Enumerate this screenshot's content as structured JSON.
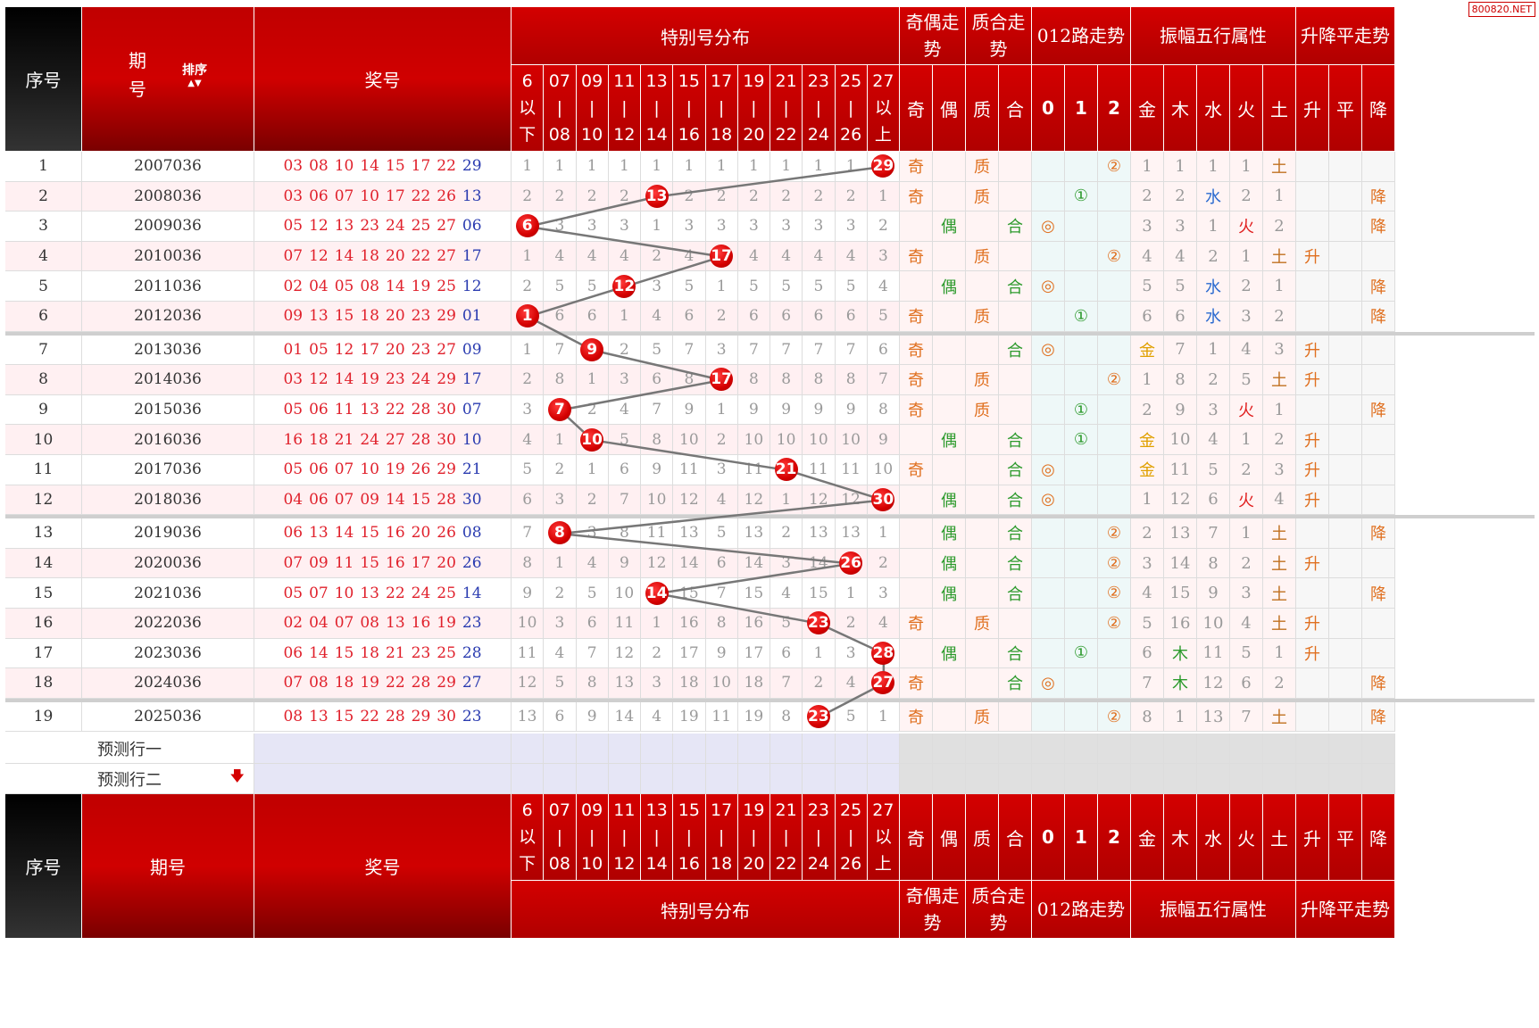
{
  "watermark": "800820.NET",
  "header": {
    "seq": "序号",
    "period": "期号",
    "period_top": "期",
    "period_bottom": "号",
    "sort_label": "排序",
    "draw": "奖号",
    "special_dist": "特别号分布",
    "odd_even": "奇偶走势",
    "prime_comp": "质合走势",
    "mod3": "012路走势",
    "wuxing": "振幅五行属性",
    "updown": "升降平走势"
  },
  "ranges": [
    [
      "6",
      "以",
      "下"
    ],
    [
      "07",
      "|",
      "08"
    ],
    [
      "09",
      "|",
      "10"
    ],
    [
      "11",
      "|",
      "12"
    ],
    [
      "13",
      "|",
      "14"
    ],
    [
      "15",
      "|",
      "16"
    ],
    [
      "17",
      "|",
      "18"
    ],
    [
      "19",
      "|",
      "20"
    ],
    [
      "21",
      "|",
      "22"
    ],
    [
      "23",
      "|",
      "24"
    ],
    [
      "25",
      "|",
      "26"
    ],
    [
      "27",
      "以",
      "上"
    ]
  ],
  "sub_cols": [
    "奇",
    "偶",
    "质",
    "合",
    "0",
    "1",
    "2",
    "金",
    "木",
    "水",
    "火",
    "土",
    "升",
    "平",
    "降"
  ],
  "rows": [
    {
      "seq": "1",
      "period": "2007036",
      "nums": [
        "03",
        "08",
        "10",
        "14",
        "15",
        "17",
        "22"
      ],
      "sp": "29",
      "miss": [
        "1",
        "1",
        "1",
        "1",
        "1",
        "1",
        "1",
        "1",
        "1",
        "1",
        "1",
        "29"
      ],
      "oe": "奇",
      "pc": "质",
      "m3": "②",
      "wx": [
        "1",
        "1",
        "1",
        "1",
        "土"
      ],
      "ud": ""
    },
    {
      "seq": "2",
      "period": "2008036",
      "nums": [
        "03",
        "06",
        "07",
        "10",
        "17",
        "22",
        "26"
      ],
      "sp": "13",
      "miss": [
        "2",
        "2",
        "2",
        "2",
        "13",
        "2",
        "2",
        "2",
        "2",
        "2",
        "2",
        "1"
      ],
      "oe": "奇",
      "pc": "质",
      "m3": "①",
      "wx": [
        "2",
        "2",
        "水",
        "2",
        "1"
      ],
      "ud": "降"
    },
    {
      "seq": "3",
      "period": "2009036",
      "nums": [
        "05",
        "12",
        "13",
        "23",
        "24",
        "25",
        "27"
      ],
      "sp": "06",
      "miss": [
        "6",
        "3",
        "3",
        "3",
        "1",
        "3",
        "3",
        "3",
        "3",
        "3",
        "3",
        "2"
      ],
      "oe": "偶",
      "pc": "合",
      "m3": "◎",
      "wx": [
        "3",
        "3",
        "1",
        "火",
        "2"
      ],
      "ud": "降"
    },
    {
      "seq": "4",
      "period": "2010036",
      "nums": [
        "07",
        "12",
        "14",
        "18",
        "20",
        "22",
        "27"
      ],
      "sp": "17",
      "miss": [
        "1",
        "4",
        "4",
        "4",
        "2",
        "4",
        "17",
        "4",
        "4",
        "4",
        "4",
        "3"
      ],
      "oe": "奇",
      "pc": "质",
      "m3": "②",
      "wx": [
        "4",
        "4",
        "2",
        "1",
        "土"
      ],
      "ud": "升"
    },
    {
      "seq": "5",
      "period": "2011036",
      "nums": [
        "02",
        "04",
        "05",
        "08",
        "14",
        "19",
        "25"
      ],
      "sp": "12",
      "miss": [
        "2",
        "5",
        "5",
        "12",
        "3",
        "5",
        "1",
        "5",
        "5",
        "5",
        "5",
        "4"
      ],
      "oe": "偶",
      "pc": "合",
      "m3": "◎",
      "wx": [
        "5",
        "5",
        "水",
        "2",
        "1"
      ],
      "ud": "降"
    },
    {
      "seq": "6",
      "period": "2012036",
      "nums": [
        "09",
        "13",
        "15",
        "18",
        "20",
        "23",
        "29"
      ],
      "sp": "01",
      "miss": [
        "1",
        "6",
        "6",
        "1",
        "4",
        "6",
        "2",
        "6",
        "6",
        "6",
        "6",
        "5"
      ],
      "oe": "奇",
      "pc": "质",
      "m3": "①",
      "wx": [
        "6",
        "6",
        "水",
        "3",
        "2"
      ],
      "ud": "降"
    },
    {
      "seq": "7",
      "period": "2013036",
      "nums": [
        "01",
        "05",
        "12",
        "17",
        "20",
        "23",
        "27"
      ],
      "sp": "09",
      "miss": [
        "1",
        "7",
        "9",
        "2",
        "5",
        "7",
        "3",
        "7",
        "7",
        "7",
        "7",
        "6"
      ],
      "oe": "奇",
      "pc": "合",
      "m3": "◎",
      "wx": [
        "金",
        "7",
        "1",
        "4",
        "3"
      ],
      "ud": "升"
    },
    {
      "seq": "8",
      "period": "2014036",
      "nums": [
        "03",
        "12",
        "14",
        "19",
        "23",
        "24",
        "29"
      ],
      "sp": "17",
      "miss": [
        "2",
        "8",
        "1",
        "3",
        "6",
        "8",
        "17",
        "8",
        "8",
        "8",
        "8",
        "7"
      ],
      "oe": "奇",
      "pc": "质",
      "m3": "②",
      "wx": [
        "1",
        "8",
        "2",
        "5",
        "土"
      ],
      "ud": "升"
    },
    {
      "seq": "9",
      "period": "2015036",
      "nums": [
        "05",
        "06",
        "11",
        "13",
        "22",
        "28",
        "30"
      ],
      "sp": "07",
      "miss": [
        "3",
        "7",
        "2",
        "4",
        "7",
        "9",
        "1",
        "9",
        "9",
        "9",
        "9",
        "8"
      ],
      "oe": "奇",
      "pc": "质",
      "m3": "①",
      "wx": [
        "2",
        "9",
        "3",
        "火",
        "1"
      ],
      "ud": "降"
    },
    {
      "seq": "10",
      "period": "2016036",
      "nums": [
        "16",
        "18",
        "21",
        "24",
        "27",
        "28",
        "30"
      ],
      "sp": "10",
      "miss": [
        "4",
        "1",
        "10",
        "5",
        "8",
        "10",
        "2",
        "10",
        "10",
        "10",
        "10",
        "9"
      ],
      "oe": "偶",
      "pc": "合",
      "m3": "①",
      "wx": [
        "金",
        "10",
        "4",
        "1",
        "2"
      ],
      "ud": "升"
    },
    {
      "seq": "11",
      "period": "2017036",
      "nums": [
        "05",
        "06",
        "07",
        "10",
        "19",
        "26",
        "29"
      ],
      "sp": "21",
      "miss": [
        "5",
        "2",
        "1",
        "6",
        "9",
        "11",
        "3",
        "11",
        "21",
        "11",
        "11",
        "10"
      ],
      "oe": "奇",
      "pc": "合",
      "m3": "◎",
      "wx": [
        "金",
        "11",
        "5",
        "2",
        "3"
      ],
      "ud": "升"
    },
    {
      "seq": "12",
      "period": "2018036",
      "nums": [
        "04",
        "06",
        "07",
        "09",
        "14",
        "15",
        "28"
      ],
      "sp": "30",
      "miss": [
        "6",
        "3",
        "2",
        "7",
        "10",
        "12",
        "4",
        "12",
        "1",
        "12",
        "12",
        "30"
      ],
      "oe": "偶",
      "pc": "合",
      "m3": "◎",
      "wx": [
        "1",
        "12",
        "6",
        "火",
        "4"
      ],
      "ud": "升"
    },
    {
      "seq": "13",
      "period": "2019036",
      "nums": [
        "06",
        "13",
        "14",
        "15",
        "16",
        "20",
        "26"
      ],
      "sp": "08",
      "miss": [
        "7",
        "8",
        "3",
        "8",
        "11",
        "13",
        "5",
        "13",
        "2",
        "13",
        "13",
        "1"
      ],
      "oe": "偶",
      "pc": "合",
      "m3": "②",
      "wx": [
        "2",
        "13",
        "7",
        "1",
        "土"
      ],
      "ud": "降"
    },
    {
      "seq": "14",
      "period": "2020036",
      "nums": [
        "07",
        "09",
        "11",
        "15",
        "16",
        "17",
        "20"
      ],
      "sp": "26",
      "miss": [
        "8",
        "1",
        "4",
        "9",
        "12",
        "14",
        "6",
        "14",
        "3",
        "14",
        "26",
        "2"
      ],
      "oe": "偶",
      "pc": "合",
      "m3": "②",
      "wx": [
        "3",
        "14",
        "8",
        "2",
        "土"
      ],
      "ud": "升"
    },
    {
      "seq": "15",
      "period": "2021036",
      "nums": [
        "05",
        "07",
        "10",
        "13",
        "22",
        "24",
        "25"
      ],
      "sp": "14",
      "miss": [
        "9",
        "2",
        "5",
        "10",
        "14",
        "15",
        "7",
        "15",
        "4",
        "15",
        "1",
        "3"
      ],
      "oe": "偶",
      "pc": "合",
      "m3": "②",
      "wx": [
        "4",
        "15",
        "9",
        "3",
        "土"
      ],
      "ud": "降"
    },
    {
      "seq": "16",
      "period": "2022036",
      "nums": [
        "02",
        "04",
        "07",
        "08",
        "13",
        "16",
        "19"
      ],
      "sp": "23",
      "miss": [
        "10",
        "3",
        "6",
        "11",
        "1",
        "16",
        "8",
        "16",
        "5",
        "23",
        "2",
        "4"
      ],
      "oe": "奇",
      "pc": "质",
      "m3": "②",
      "wx": [
        "5",
        "16",
        "10",
        "4",
        "土"
      ],
      "ud": "升"
    },
    {
      "seq": "17",
      "period": "2023036",
      "nums": [
        "06",
        "14",
        "15",
        "18",
        "21",
        "23",
        "25"
      ],
      "sp": "28",
      "miss": [
        "11",
        "4",
        "7",
        "12",
        "2",
        "17",
        "9",
        "17",
        "6",
        "1",
        "3",
        "28"
      ],
      "oe": "偶",
      "pc": "合",
      "m3": "①",
      "wx": [
        "6",
        "木",
        "11",
        "5",
        "1"
      ],
      "ud": "升"
    },
    {
      "seq": "18",
      "period": "2024036",
      "nums": [
        "07",
        "08",
        "18",
        "19",
        "22",
        "28",
        "29"
      ],
      "sp": "27",
      "miss": [
        "12",
        "5",
        "8",
        "13",
        "3",
        "18",
        "10",
        "18",
        "7",
        "2",
        "4",
        "27"
      ],
      "oe": "奇",
      "pc": "合",
      "m3": "◎",
      "wx": [
        "7",
        "木",
        "12",
        "6",
        "2"
      ],
      "ud": "降"
    },
    {
      "seq": "19",
      "period": "2025036",
      "nums": [
        "08",
        "13",
        "15",
        "22",
        "28",
        "29",
        "30"
      ],
      "sp": "23",
      "miss": [
        "13",
        "6",
        "9",
        "14",
        "4",
        "19",
        "11",
        "19",
        "8",
        "23",
        "5",
        "1"
      ],
      "oe": "奇",
      "pc": "质",
      "m3": "②",
      "wx": [
        "8",
        "1",
        "13",
        "7",
        "土"
      ],
      "ud": "降"
    }
  ],
  "predict": [
    "预测行一",
    "预测行二"
  ],
  "colors": {
    "red": "#d40000",
    "blue": "#2a3bb0",
    "green": "#2c9a2c",
    "orange": "#e07020"
  }
}
